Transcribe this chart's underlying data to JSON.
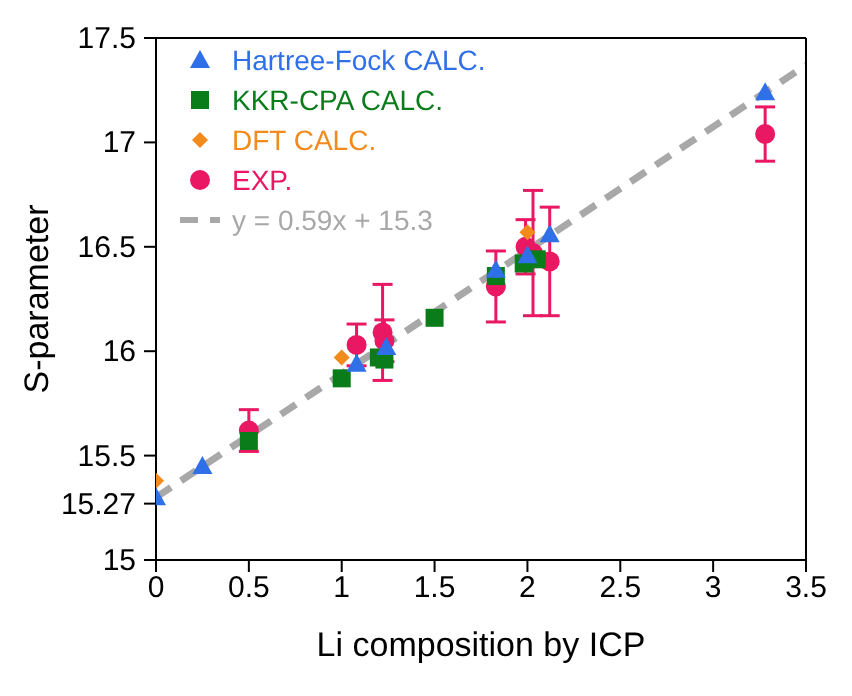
{
  "chart_data": {
    "type": "scatter",
    "xlabel": "Li composition by ICP",
    "ylabel": "S-parameter",
    "xlim": [
      0,
      3.5
    ],
    "xticks": [
      0,
      0.5,
      1,
      1.5,
      2,
      2.5,
      3,
      3.5
    ],
    "ylim": [
      15,
      17.5
    ],
    "yticks": [
      15,
      15.27,
      15.5,
      16,
      16.5,
      17,
      17.5
    ],
    "legend": "top left",
    "series": [
      {
        "name": "Hartree-Fock CALC.",
        "color": "#2f6fe8",
        "marker": "triangle",
        "x": [
          0,
          0.25,
          1.08,
          1.24,
          1.83,
          2.0,
          2.12,
          3.28
        ],
        "values": [
          15.3,
          15.45,
          15.94,
          16.02,
          16.39,
          16.46,
          16.56,
          17.24
        ]
      },
      {
        "name": "KKR-CPA CALC.",
        "color": "#0a7d1a",
        "marker": "square",
        "x": [
          0.5,
          1.0,
          1.2,
          1.23,
          1.5,
          1.83,
          1.98,
          2.05
        ],
        "values": [
          15.57,
          15.87,
          15.97,
          15.96,
          16.16,
          16.36,
          16.42,
          16.44
        ]
      },
      {
        "name": "DFT CALC.",
        "color": "#f28a1c",
        "marker": "diamond",
        "x": [
          0,
          1.0,
          2.0
        ],
        "values": [
          15.38,
          15.97,
          16.57
        ]
      },
      {
        "name": "EXP.",
        "color": "#ea1763",
        "marker": "circle",
        "x": [
          0.5,
          1.08,
          1.22,
          1.23,
          1.83,
          1.99,
          2.03,
          2.12,
          3.28
        ],
        "values": [
          15.62,
          16.03,
          16.09,
          16.05,
          16.31,
          16.5,
          16.47,
          16.43,
          17.04
        ],
        "errors": [
          0.1,
          0.1,
          0.23,
          0.1,
          0.17,
          0.13,
          0.3,
          0.26,
          0.13
        ]
      },
      {
        "name": "y = 0.59x + 15.3",
        "type": "line",
        "color": "#a8a8a8",
        "line_style": "dashed",
        "marker": "none",
        "x": [
          0,
          3.5
        ],
        "values": [
          15.3,
          17.37
        ]
      }
    ]
  }
}
